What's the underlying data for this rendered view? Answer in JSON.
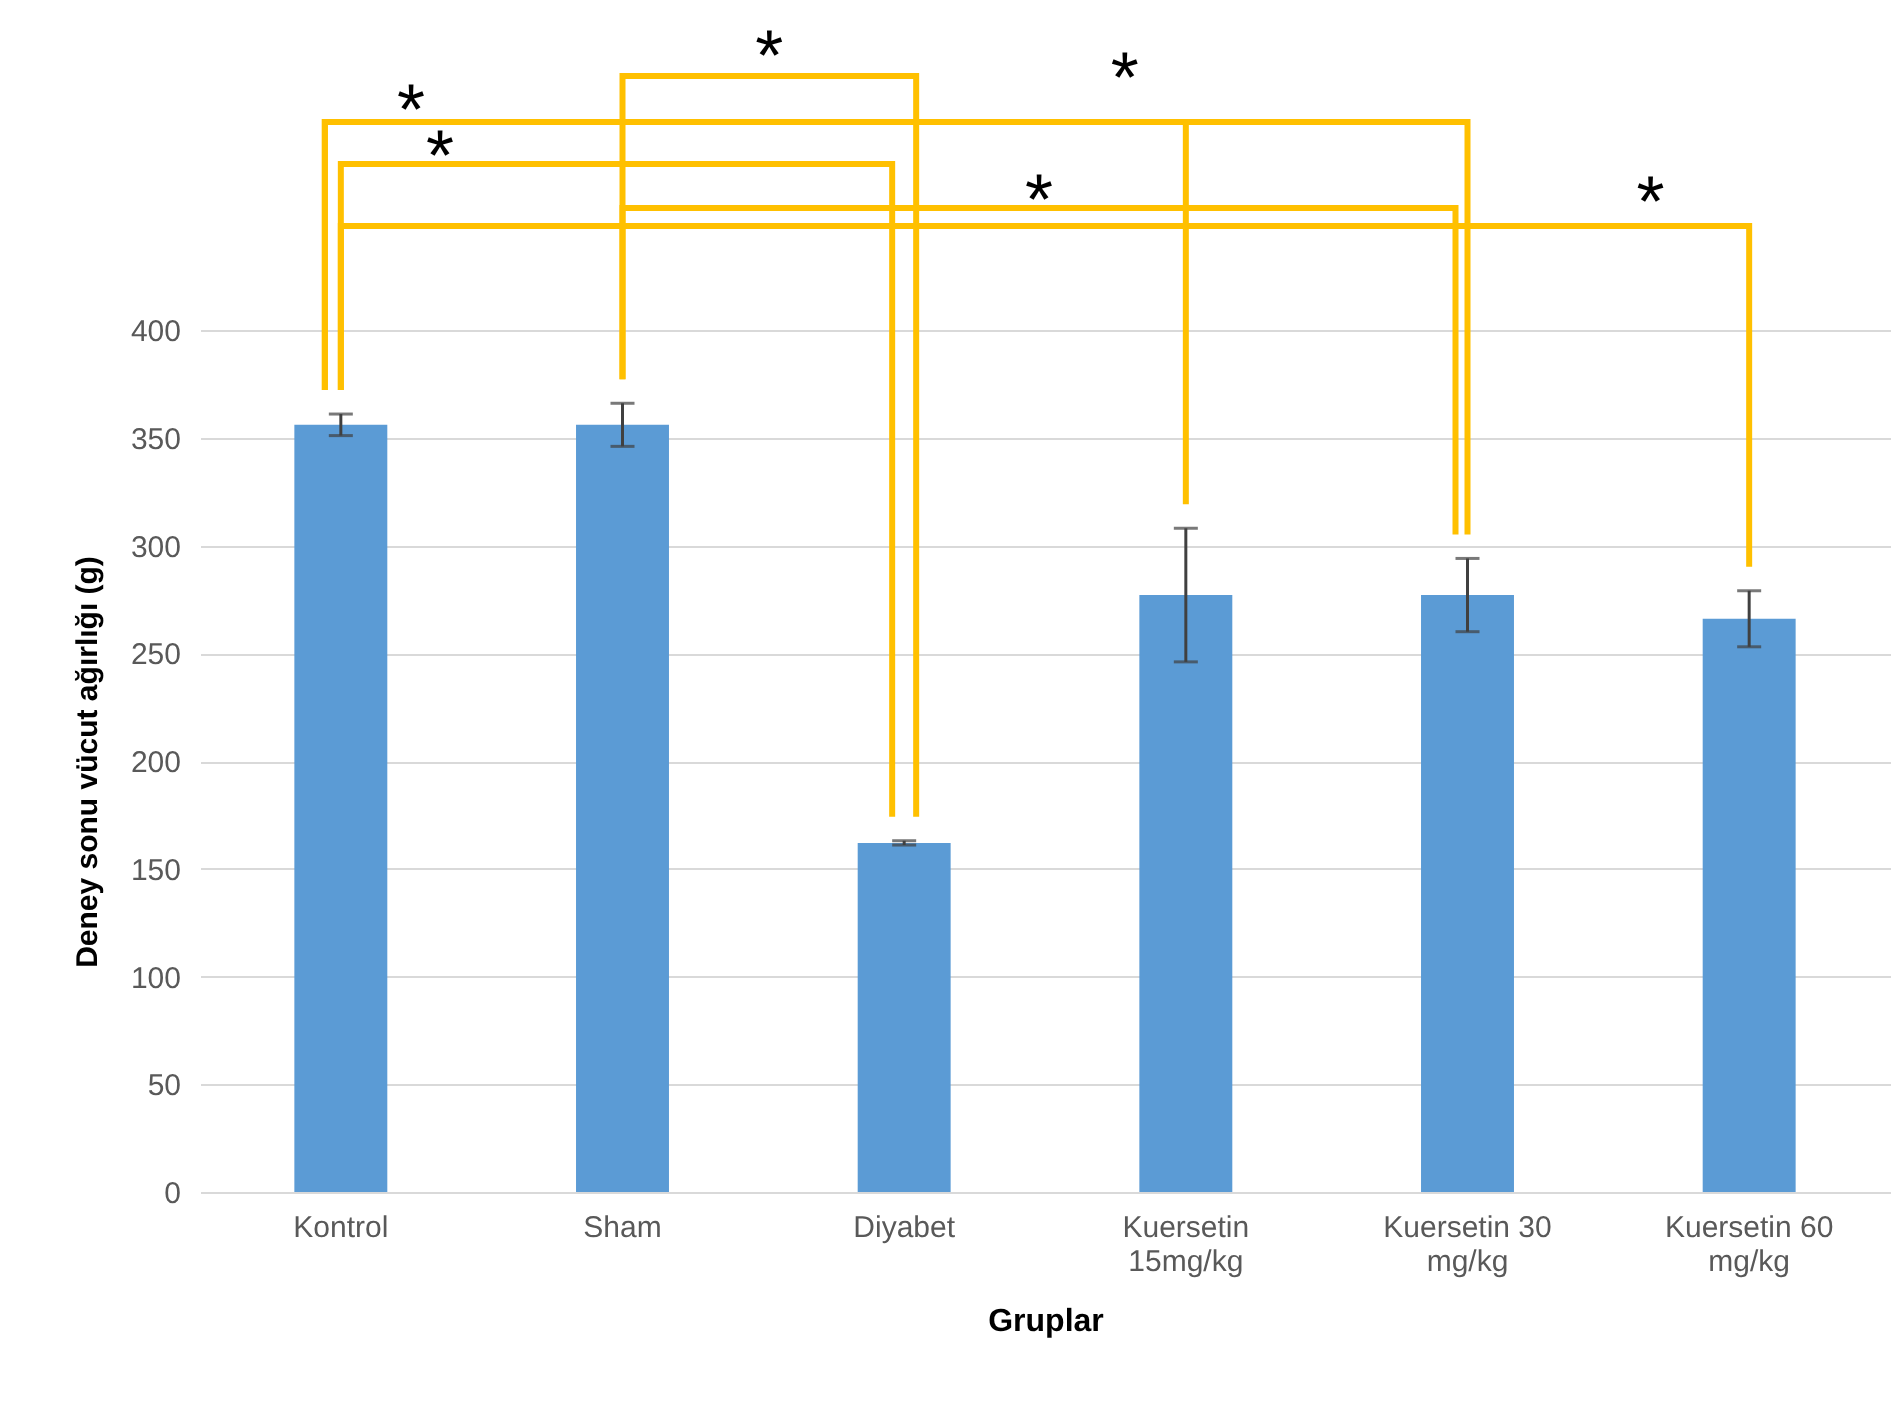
{
  "chart_data": {
    "type": "bar",
    "xlabel": "Gruplar",
    "ylabel": "Deney sonu vücut ağırlığı (g)",
    "categories": [
      "Kontrol",
      "Sham",
      "Diyabet",
      "Kuersetin 15mg/kg",
      "Kuersetin 30 mg/kg",
      "Kuersetin 60 mg/kg"
    ],
    "values": [
      356,
      356,
      162,
      277,
      277,
      266
    ],
    "errors": [
      5,
      10,
      1,
      31,
      17,
      13
    ],
    "color": "#5b9bd5",
    "ylim": [
      0,
      400
    ],
    "yticks": [
      0,
      50,
      100,
      150,
      200,
      250,
      300,
      350,
      400
    ],
    "grid": "y",
    "annotations": [
      "*",
      "*",
      "*",
      "*",
      "*",
      "*"
    ]
  }
}
